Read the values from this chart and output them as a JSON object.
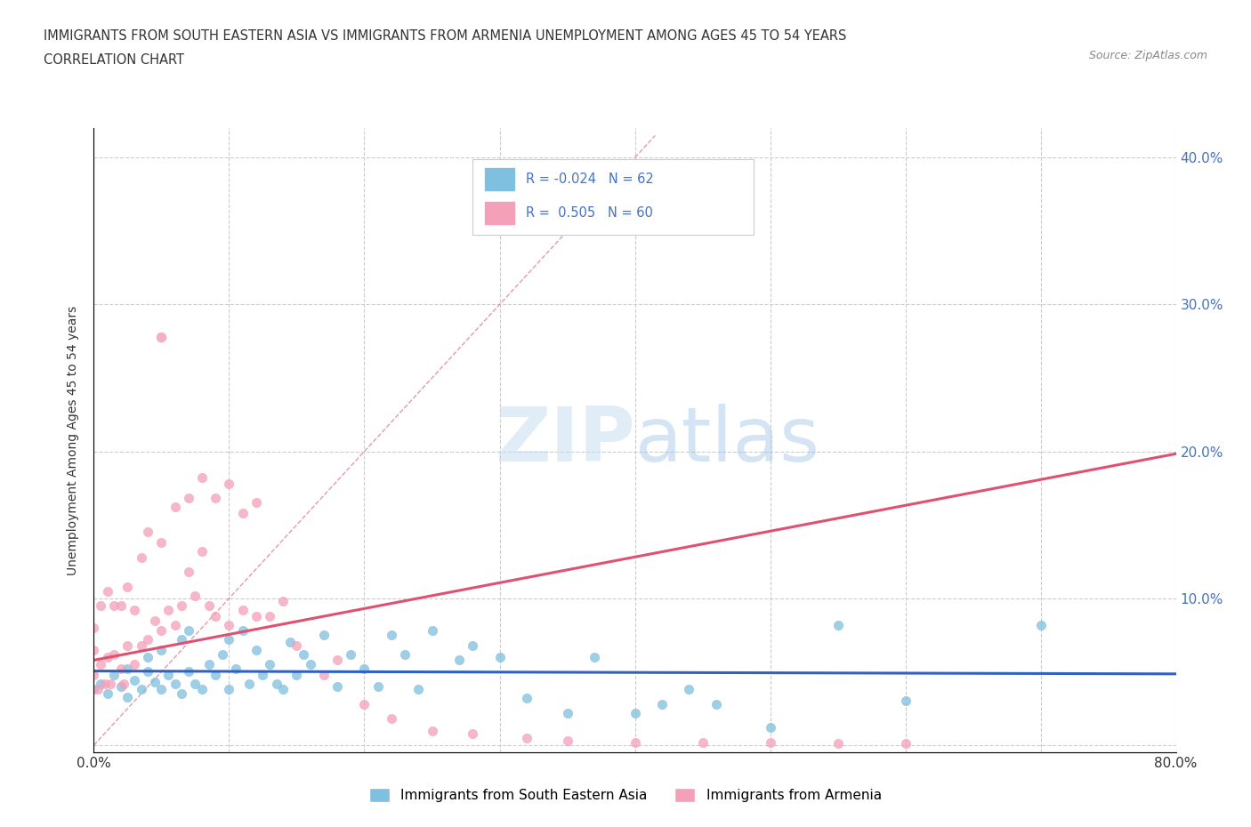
{
  "title_line1": "IMMIGRANTS FROM SOUTH EASTERN ASIA VS IMMIGRANTS FROM ARMENIA UNEMPLOYMENT AMONG AGES 45 TO 54 YEARS",
  "title_line2": "CORRELATION CHART",
  "source_text": "Source: ZipAtlas.com",
  "ylabel": "Unemployment Among Ages 45 to 54 years",
  "xlim": [
    0.0,
    0.8
  ],
  "ylim": [
    -0.005,
    0.42
  ],
  "x_ticks": [
    0.0,
    0.1,
    0.2,
    0.3,
    0.4,
    0.5,
    0.6,
    0.7,
    0.8
  ],
  "y_ticks": [
    0.0,
    0.1,
    0.2,
    0.3,
    0.4
  ],
  "grid_color": "#cccccc",
  "background_color": "#ffffff",
  "watermark_text": "ZIPatlas",
  "color_blue": "#7fbfdf",
  "color_pink": "#f4a0b8",
  "color_blue_line": "#3060c0",
  "color_pink_line": "#e05070",
  "color_diag_line": "#e08090",
  "legend_label1": "Immigrants from South Eastern Asia",
  "legend_label2": "Immigrants from Armenia",
  "blue_scatter_x": [
    0.0,
    0.005,
    0.01,
    0.015,
    0.02,
    0.025,
    0.025,
    0.03,
    0.035,
    0.04,
    0.04,
    0.045,
    0.05,
    0.05,
    0.055,
    0.06,
    0.065,
    0.065,
    0.07,
    0.07,
    0.075,
    0.08,
    0.085,
    0.09,
    0.095,
    0.1,
    0.1,
    0.105,
    0.11,
    0.115,
    0.12,
    0.125,
    0.13,
    0.135,
    0.14,
    0.145,
    0.15,
    0.155,
    0.16,
    0.17,
    0.18,
    0.19,
    0.2,
    0.21,
    0.22,
    0.23,
    0.24,
    0.25,
    0.27,
    0.28,
    0.3,
    0.32,
    0.35,
    0.37,
    0.4,
    0.42,
    0.44,
    0.46,
    0.5,
    0.55,
    0.6,
    0.7
  ],
  "blue_scatter_y": [
    0.038,
    0.042,
    0.035,
    0.048,
    0.04,
    0.033,
    0.052,
    0.044,
    0.038,
    0.05,
    0.06,
    0.043,
    0.038,
    0.065,
    0.048,
    0.042,
    0.035,
    0.072,
    0.05,
    0.078,
    0.042,
    0.038,
    0.055,
    0.048,
    0.062,
    0.038,
    0.072,
    0.052,
    0.078,
    0.042,
    0.065,
    0.048,
    0.055,
    0.042,
    0.038,
    0.07,
    0.048,
    0.062,
    0.055,
    0.075,
    0.04,
    0.062,
    0.052,
    0.04,
    0.075,
    0.062,
    0.038,
    0.078,
    0.058,
    0.068,
    0.06,
    0.032,
    0.022,
    0.06,
    0.022,
    0.028,
    0.038,
    0.028,
    0.012,
    0.082,
    0.03,
    0.082
  ],
  "pink_scatter_x": [
    0.0,
    0.0,
    0.0,
    0.003,
    0.005,
    0.005,
    0.008,
    0.01,
    0.01,
    0.012,
    0.015,
    0.015,
    0.02,
    0.02,
    0.022,
    0.025,
    0.025,
    0.03,
    0.03,
    0.035,
    0.035,
    0.04,
    0.04,
    0.045,
    0.05,
    0.05,
    0.055,
    0.06,
    0.06,
    0.065,
    0.07,
    0.07,
    0.075,
    0.08,
    0.08,
    0.085,
    0.09,
    0.09,
    0.1,
    0.1,
    0.11,
    0.11,
    0.12,
    0.12,
    0.13,
    0.14,
    0.15,
    0.17,
    0.18,
    0.2,
    0.22,
    0.25,
    0.28,
    0.32,
    0.35,
    0.4,
    0.45,
    0.5,
    0.55,
    0.6
  ],
  "pink_scatter_y": [
    0.048,
    0.065,
    0.08,
    0.038,
    0.055,
    0.095,
    0.042,
    0.06,
    0.105,
    0.042,
    0.062,
    0.095,
    0.052,
    0.095,
    0.042,
    0.068,
    0.108,
    0.055,
    0.092,
    0.068,
    0.128,
    0.072,
    0.145,
    0.085,
    0.078,
    0.138,
    0.092,
    0.082,
    0.162,
    0.095,
    0.118,
    0.168,
    0.102,
    0.132,
    0.182,
    0.095,
    0.168,
    0.088,
    0.178,
    0.082,
    0.092,
    0.158,
    0.088,
    0.165,
    0.088,
    0.098,
    0.068,
    0.048,
    0.058,
    0.028,
    0.018,
    0.01,
    0.008,
    0.005,
    0.003,
    0.002,
    0.002,
    0.002,
    0.001,
    0.001
  ],
  "pink_outlier_x": [
    0.05
  ],
  "pink_outlier_y": [
    0.278
  ]
}
